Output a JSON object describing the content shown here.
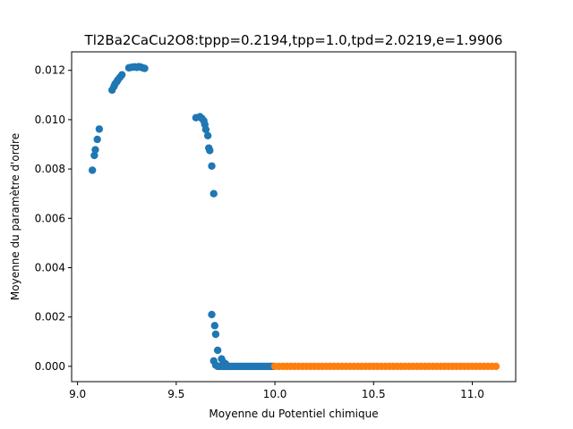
{
  "chart_data": {
    "type": "scatter",
    "title": "Tl2Ba2CaCu2O8:tppp=0.2194,tpp=1.0,tpd=2.0219,e=1.9906",
    "xlabel": "Moyenne du Potentiel chimique",
    "ylabel": "Moyenne du paramètre d'ordre",
    "xlim": [
      8.97,
      11.22
    ],
    "ylim": [
      -0.00062,
      0.01275
    ],
    "xticks": [
      9.0,
      9.5,
      10.0,
      10.5,
      11.0
    ],
    "xtick_labels": [
      "9.0",
      "9.5",
      "10.0",
      "10.5",
      "11.0"
    ],
    "yticks": [
      0.0,
      0.002,
      0.004,
      0.006,
      0.008,
      0.01,
      0.012
    ],
    "ytick_labels": [
      "0.000",
      "0.002",
      "0.004",
      "0.006",
      "0.008",
      "0.010",
      "0.012"
    ],
    "grid": false,
    "series": [
      {
        "color": "#1f77b4",
        "points": [
          [
            9.075,
            0.00795
          ],
          [
            9.085,
            0.00855
          ],
          [
            9.09,
            0.00878
          ],
          [
            9.1,
            0.0092
          ],
          [
            9.11,
            0.00962
          ],
          [
            9.175,
            0.0112
          ],
          [
            9.185,
            0.01135
          ],
          [
            9.19,
            0.01145
          ],
          [
            9.2,
            0.01155
          ],
          [
            9.205,
            0.01162
          ],
          [
            9.215,
            0.01172
          ],
          [
            9.225,
            0.01182
          ],
          [
            9.26,
            0.0121
          ],
          [
            9.27,
            0.01212
          ],
          [
            9.28,
            0.01213
          ],
          [
            9.29,
            0.01214
          ],
          [
            9.3,
            0.01212
          ],
          [
            9.31,
            0.01215
          ],
          [
            9.32,
            0.01213
          ],
          [
            9.33,
            0.0121
          ],
          [
            9.34,
            0.01208
          ],
          [
            9.6,
            0.01008
          ],
          [
            9.62,
            0.01012
          ],
          [
            9.63,
            0.01005
          ],
          [
            9.64,
            0.00995
          ],
          [
            9.645,
            0.0098
          ],
          [
            9.65,
            0.0096
          ],
          [
            9.66,
            0.00935
          ],
          [
            9.665,
            0.00885
          ],
          [
            9.67,
            0.00875
          ],
          [
            9.68,
            0.00812
          ],
          [
            9.69,
            0.007
          ],
          [
            9.68,
            0.0021
          ],
          [
            9.695,
            0.00165
          ],
          [
            9.7,
            0.0013
          ],
          [
            9.71,
            0.00065
          ],
          [
            9.73,
            0.0003
          ],
          [
            9.74,
            0.00015
          ],
          [
            9.75,
            0.0001
          ],
          [
            9.69,
            0.00022
          ],
          [
            9.7,
            5e-05
          ],
          [
            9.71,
            0.0
          ],
          [
            9.72,
            0.0
          ],
          [
            9.73,
            0.0
          ],
          [
            9.74,
            0.0
          ],
          [
            9.75,
            0.0
          ],
          [
            9.76,
            0.0
          ],
          [
            9.77,
            0.0
          ],
          [
            9.78,
            0.0
          ],
          [
            9.79,
            0.0
          ],
          [
            9.8,
            0.0
          ],
          [
            9.81,
            0.0
          ],
          [
            9.82,
            0.0
          ],
          [
            9.83,
            0.0
          ],
          [
            9.84,
            0.0
          ],
          [
            9.85,
            0.0
          ],
          [
            9.86,
            0.0
          ],
          [
            9.87,
            0.0
          ],
          [
            9.88,
            0.0
          ],
          [
            9.89,
            0.0
          ],
          [
            9.9,
            0.0
          ],
          [
            9.91,
            0.0
          ],
          [
            9.92,
            0.0
          ],
          [
            9.93,
            0.0
          ],
          [
            9.94,
            0.0
          ],
          [
            9.95,
            0.0
          ],
          [
            9.96,
            0.0
          ],
          [
            9.97,
            0.0
          ],
          [
            9.98,
            0.0
          ],
          [
            9.99,
            0.0
          ]
        ]
      },
      {
        "color": "#ff7f0e",
        "points": [
          [
            10.0,
            0.0
          ],
          [
            10.02,
            0.0
          ],
          [
            10.04,
            0.0
          ],
          [
            10.06,
            0.0
          ],
          [
            10.08,
            0.0
          ],
          [
            10.1,
            0.0
          ],
          [
            10.12,
            0.0
          ],
          [
            10.14,
            0.0
          ],
          [
            10.16,
            0.0
          ],
          [
            10.18,
            0.0
          ],
          [
            10.2,
            0.0
          ],
          [
            10.22,
            0.0
          ],
          [
            10.24,
            0.0
          ],
          [
            10.26,
            0.0
          ],
          [
            10.28,
            0.0
          ],
          [
            10.3,
            0.0
          ],
          [
            10.32,
            0.0
          ],
          [
            10.34,
            0.0
          ],
          [
            10.36,
            0.0
          ],
          [
            10.38,
            0.0
          ],
          [
            10.4,
            0.0
          ],
          [
            10.42,
            0.0
          ],
          [
            10.44,
            0.0
          ],
          [
            10.46,
            0.0
          ],
          [
            10.48,
            0.0
          ],
          [
            10.5,
            0.0
          ],
          [
            10.52,
            0.0
          ],
          [
            10.54,
            0.0
          ],
          [
            10.56,
            0.0
          ],
          [
            10.58,
            0.0
          ],
          [
            10.6,
            0.0
          ],
          [
            10.62,
            0.0
          ],
          [
            10.64,
            0.0
          ],
          [
            10.66,
            0.0
          ],
          [
            10.68,
            0.0
          ],
          [
            10.7,
            0.0
          ],
          [
            10.72,
            0.0
          ],
          [
            10.74,
            0.0
          ],
          [
            10.76,
            0.0
          ],
          [
            10.78,
            0.0
          ],
          [
            10.8,
            0.0
          ],
          [
            10.82,
            0.0
          ],
          [
            10.84,
            0.0
          ],
          [
            10.86,
            0.0
          ],
          [
            10.88,
            0.0
          ],
          [
            10.9,
            0.0
          ],
          [
            10.92,
            0.0
          ],
          [
            10.94,
            0.0
          ],
          [
            10.96,
            0.0
          ],
          [
            10.98,
            0.0
          ],
          [
            11.0,
            0.0
          ],
          [
            11.02,
            0.0
          ],
          [
            11.04,
            0.0
          ],
          [
            11.06,
            0.0
          ],
          [
            11.08,
            0.0
          ],
          [
            11.1,
            0.0
          ],
          [
            11.12,
            0.0
          ]
        ]
      }
    ]
  }
}
